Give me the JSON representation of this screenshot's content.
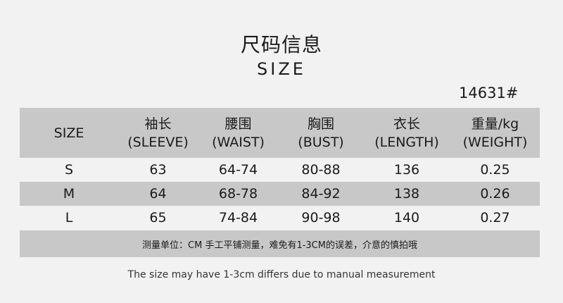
{
  "title_cn": "尺码信息",
  "title_en": "SIZE",
  "product_code": "14631#",
  "table": {
    "headers": [
      {
        "cn": "SIZE",
        "en": ""
      },
      {
        "cn": "袖长",
        "en": "(SLEEVE)"
      },
      {
        "cn": "腰围",
        "en": "(WAIST)"
      },
      {
        "cn": "胸围",
        "en": "(BUST)"
      },
      {
        "cn": "衣长",
        "en": "(LENGTH)"
      },
      {
        "cn": "重量/kg",
        "en": "(WEIGHT)"
      }
    ],
    "rows": [
      [
        "S",
        "63",
        "64-74",
        "80-88",
        "136",
        "0.25"
      ],
      [
        "M",
        "64",
        "68-78",
        "84-92",
        "138",
        "0.26"
      ],
      [
        "L",
        "65",
        "74-84",
        "90-98",
        "140",
        "0.27"
      ]
    ]
  },
  "note_cn": "测量单位：CM 手工平铺测量，难免有1-3CM的误差，介意的慎拍哦",
  "footer_en": "The size may have 1-3cm differs due to manual measurement",
  "colors": {
    "background": "#f2f2f2",
    "band": "#c8c8c8"
  }
}
